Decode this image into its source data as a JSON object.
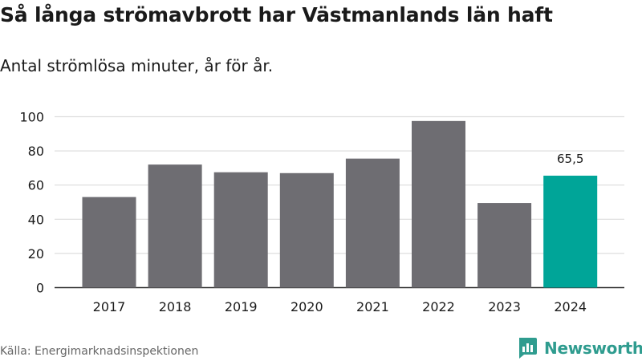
{
  "header": {
    "title": "Så långa strömavbrott har Västmanlands län haft",
    "subtitle": "Antal strömlösa minuter, år för år."
  },
  "footer": {
    "source": "Källa: Energimarknadsinspektionen",
    "brand": "Newsworthy"
  },
  "colors": {
    "bar": "#6e6d72",
    "highlight": "#00a598",
    "grid": "#dddddd",
    "axis": "#333333",
    "text": "#1a1a1a",
    "brand": "#2f9c8f"
  },
  "chart_data": {
    "type": "bar",
    "title": "Så långa strömavbrott har Västmanlands län haft",
    "subtitle": "Antal strömlösa minuter, år för år.",
    "xlabel": "",
    "ylabel": "",
    "categories": [
      "2017",
      "2018",
      "2019",
      "2020",
      "2021",
      "2022",
      "2023",
      "2024"
    ],
    "values": [
      53,
      72,
      67.5,
      67,
      75.5,
      97.5,
      49.5,
      65.5
    ],
    "highlight_index": 7,
    "data_labels": [
      {
        "index": 7,
        "text": "65,5"
      }
    ],
    "ylim": [
      0,
      100
    ],
    "yticks": [
      0,
      20,
      40,
      60,
      80,
      100
    ],
    "grid": true,
    "legend": "none"
  }
}
